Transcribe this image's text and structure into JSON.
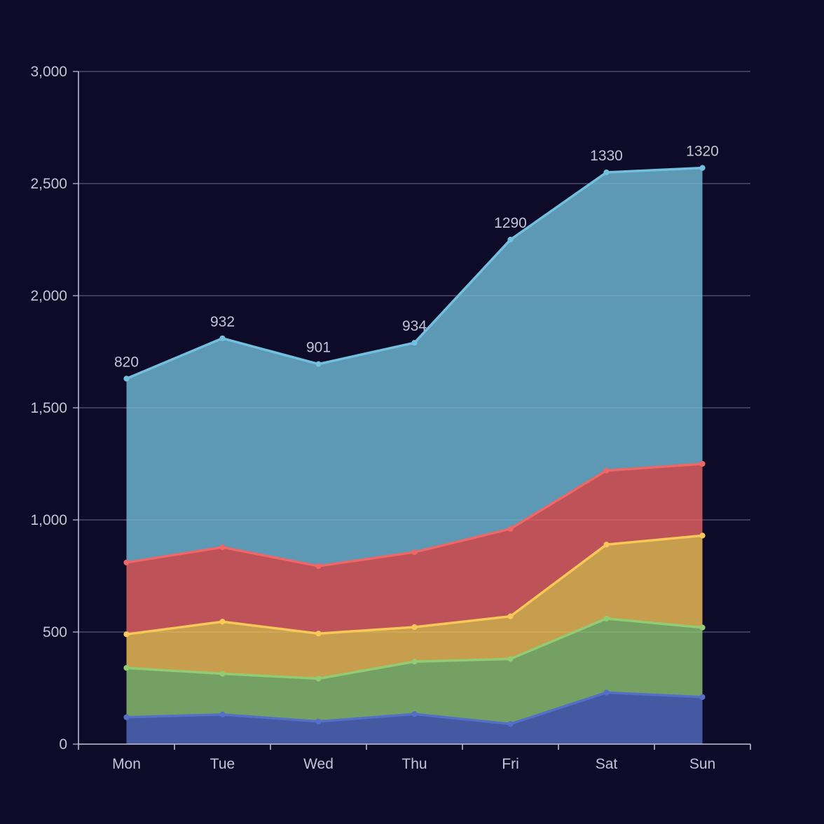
{
  "chart_data": {
    "type": "area",
    "stacked": true,
    "categories": [
      "Mon",
      "Tue",
      "Wed",
      "Thu",
      "Fri",
      "Sat",
      "Sun"
    ],
    "series": [
      {
        "values": [
          120,
          132,
          101,
          134,
          90,
          230,
          210
        ],
        "color": "#5470c6"
      },
      {
        "values": [
          220,
          182,
          191,
          234,
          290,
          330,
          310
        ],
        "color": "#91cc75"
      },
      {
        "values": [
          150,
          232,
          201,
          154,
          190,
          330,
          410
        ],
        "color": "#fac858"
      },
      {
        "values": [
          320,
          332,
          301,
          334,
          390,
          330,
          320
        ],
        "color": "#ee6666"
      },
      {
        "values": [
          820,
          932,
          901,
          934,
          1290,
          1330,
          1320
        ],
        "color": "#73c0de",
        "show_labels": true
      }
    ],
    "ylim": [
      0,
      3000
    ],
    "yticks": [
      "0",
      "500",
      "1,000",
      "1,500",
      "2,000",
      "2,500",
      "3,000"
    ],
    "ytick_values": [
      0,
      500,
      1000,
      1500,
      2000,
      2500,
      3000
    ],
    "grid": true,
    "legend": "none"
  }
}
